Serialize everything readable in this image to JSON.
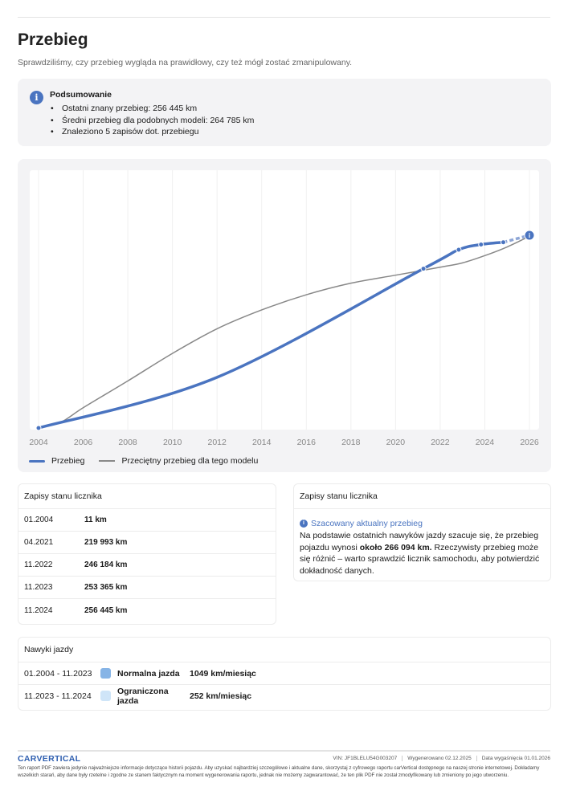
{
  "title": "Przebieg",
  "subtitle": "Sprawdziliśmy, czy przebieg wygląda na prawidłowy, czy też mógł zostać zmanipulowany.",
  "summary": {
    "title": "Podsumowanie",
    "items": [
      "Ostatni znany przebieg: 256 445 km",
      "Średni przebieg dla podobnych modeli: 264 785 km",
      "Znaleziono 5 zapisów dot. przebiegu"
    ]
  },
  "chart_data": {
    "type": "line",
    "x_ticks": [
      "2004",
      "2006",
      "2008",
      "2010",
      "2012",
      "2014",
      "2016",
      "2018",
      "2020",
      "2022",
      "2024",
      "2026"
    ],
    "xlim": [
      2004,
      2026
    ],
    "ylim": [
      0,
      266094
    ],
    "series": [
      {
        "name": "Przebieg",
        "color": "#4a74c0",
        "points": [
          [
            2004.0,
            11
          ],
          [
            2021.25,
            219993
          ],
          [
            2022.83,
            246184
          ],
          [
            2023.83,
            253365
          ],
          [
            2024.83,
            256445
          ]
        ],
        "estimate": [
          2026.0,
          266094
        ]
      },
      {
        "name": "Przeciętny przebieg dla tego modelu",
        "color": "#888888",
        "points": [
          [
            2004,
            0
          ],
          [
            2005,
            8000
          ],
          [
            2006,
            28000
          ],
          [
            2008,
            65000
          ],
          [
            2010,
            103000
          ],
          [
            2012,
            137000
          ],
          [
            2014,
            163000
          ],
          [
            2016,
            184000
          ],
          [
            2018,
            200000
          ],
          [
            2020,
            211000
          ],
          [
            2022,
            222000
          ],
          [
            2023,
            228000
          ],
          [
            2024,
            238000
          ],
          [
            2025,
            250000
          ],
          [
            2026,
            264785
          ]
        ]
      }
    ]
  },
  "legend": {
    "blue": "Przebieg",
    "gray": "Przeciętny przebieg dla tego modelu"
  },
  "records": {
    "title": "Zapisy stanu licznika",
    "rows": [
      {
        "date": "01.2004",
        "value": "11 km"
      },
      {
        "date": "04.2021",
        "value": "219 993 km"
      },
      {
        "date": "11.2022",
        "value": "246 184 km"
      },
      {
        "date": "11.2023",
        "value": "253 365 km"
      },
      {
        "date": "11.2024",
        "value": "256 445 km"
      }
    ]
  },
  "estimate": {
    "title": "Zapisy stanu licznika",
    "heading": "Szacowany aktualny przebieg",
    "text_before": "Na podstawie ostatnich nawyków jazdy szacuje się, że przebieg pojazdu wynosi ",
    "bold": "około 266 094 km.",
    "text_after": " Rzeczywisty przebieg może się różnić – warto sprawdzić licznik samochodu, aby potwierdzić dokładność danych."
  },
  "habits": {
    "title": "Nawyki jazdy",
    "rows": [
      {
        "period": "01.2004 - 11.2023",
        "label": "Normalna jazda",
        "rate": "1049 km/miesiąc",
        "color": "#86b4e6"
      },
      {
        "period": "11.2023 - 11.2024",
        "label": "Ograniczona jazda",
        "rate": "252 km/miesiąc",
        "color": "#cfe5f8"
      }
    ]
  },
  "footer": {
    "logo": "CARVERTICAL",
    "vin": "VIN: JF1BLELU54G003207",
    "generated": "Wygenerowano  02.12.2025",
    "expires": "Data wygaśnięcia  01.01.2026",
    "disclaimer": "Ten raport PDF zawiera jedynie najważniejsze informacje dotyczące historii pojazdu. Aby uzyskać najbardziej szczegółowe i aktualne dane, skorzystaj z cyfrowego raportu carVertical dostępnego na naszej stronie internetowej. Dokładamy wszelkich starań, aby dane były rzetelne i zgodne ze stanem faktycznym na moment wygenerowania raportu, jednak nie możemy zagwarantować, że ten plik PDF nie został zmodyfikowany lub zmieniony po jego utworzeniu."
  }
}
